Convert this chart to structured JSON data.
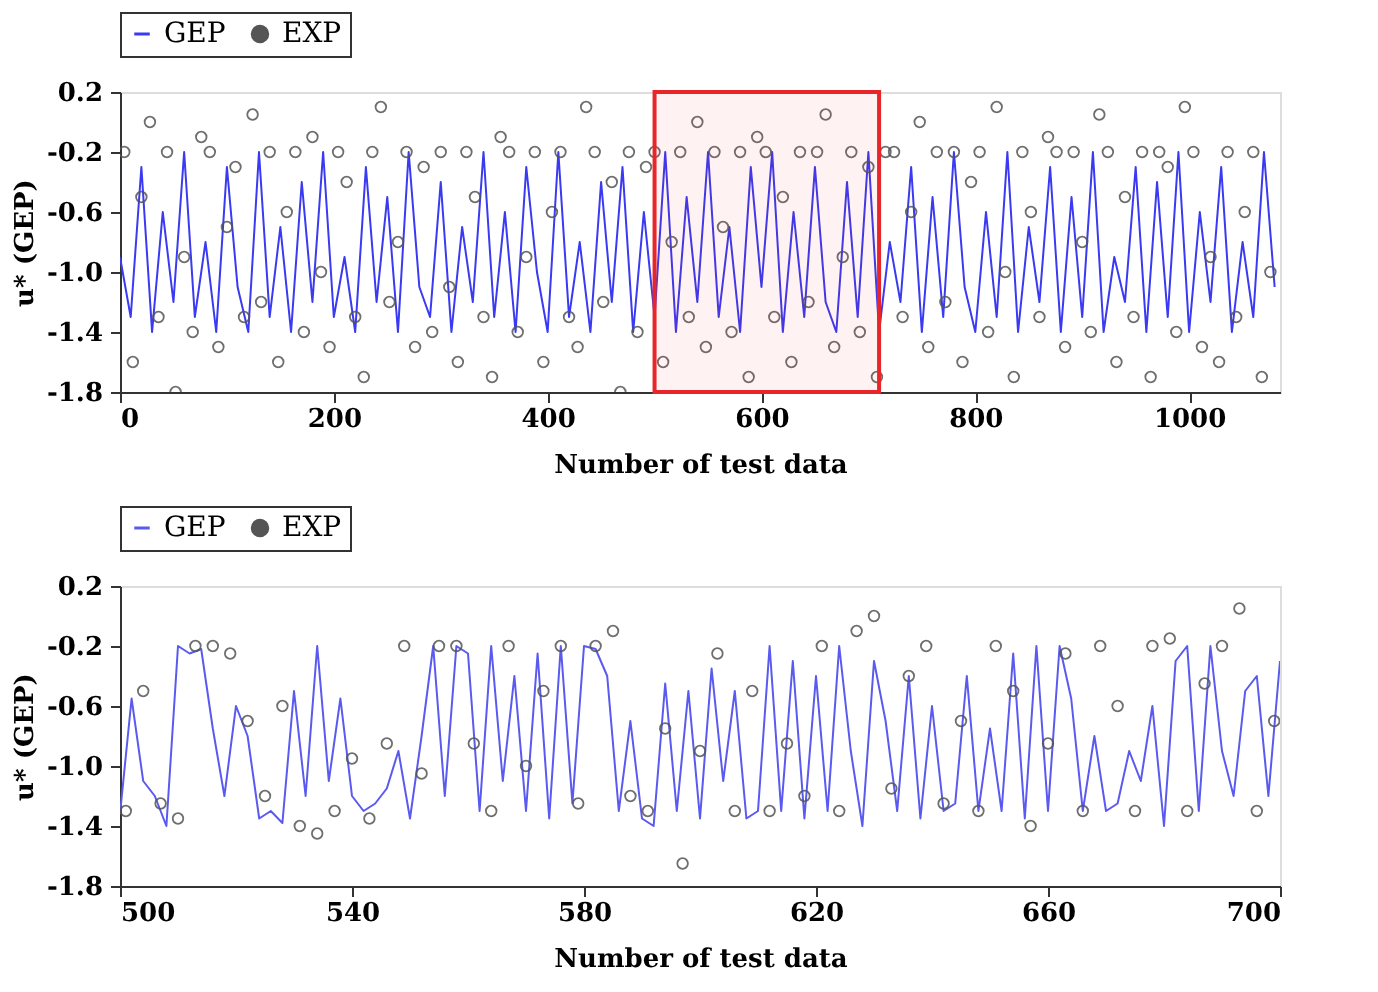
{
  "chart_data": [
    {
      "type": "line",
      "xlabel": "Number of test data",
      "ylabel": "u* (GEP)",
      "xlim": [
        0,
        1085
      ],
      "xticks": [
        0,
        200,
        400,
        600,
        800,
        1000
      ],
      "ylim": [
        -1.8,
        0.2
      ],
      "yticks": [
        0.2,
        -0.2,
        -0.6,
        {
          "value": -1.0,
          "label": "-1.0"
        },
        -1.4,
        -1.8
      ],
      "grid": false,
      "legend": "top left",
      "bands": [
        {
          "axis": "x",
          "from": 500,
          "to": 710,
          "color": "#e8262a"
        }
      ],
      "series": [
        {
          "name": "GEP",
          "type": "line",
          "color": "#3a3af2",
          "marker": "none",
          "x": [
            0,
            10,
            20,
            30,
            40,
            50,
            60,
            70,
            80,
            90,
            100,
            110,
            120,
            130,
            140,
            150,
            160,
            170,
            180,
            190,
            200,
            210,
            220,
            230,
            240,
            250,
            260,
            270,
            280,
            290,
            300,
            310,
            320,
            330,
            340,
            350,
            360,
            370,
            380,
            390,
            400,
            410,
            420,
            430,
            440,
            450,
            460,
            470,
            480,
            490,
            500,
            510,
            520,
            530,
            540,
            550,
            560,
            570,
            580,
            590,
            600,
            610,
            620,
            630,
            640,
            650,
            660,
            670,
            680,
            690,
            700,
            710,
            720,
            730,
            740,
            750,
            760,
            770,
            780,
            790,
            800,
            810,
            820,
            830,
            840,
            850,
            860,
            870,
            880,
            890,
            900,
            910,
            920,
            930,
            940,
            950,
            960,
            970,
            980,
            990,
            1000,
            1010,
            1020,
            1030,
            1040,
            1050,
            1060,
            1070,
            1080
          ],
          "values": [
            -0.9,
            -1.3,
            -0.3,
            -1.4,
            -0.6,
            -1.2,
            -0.2,
            -1.3,
            -0.8,
            -1.4,
            -0.3,
            -1.1,
            -1.4,
            -0.2,
            -1.3,
            -0.7,
            -1.4,
            -0.4,
            -1.2,
            -0.2,
            -1.3,
            -0.9,
            -1.4,
            -0.3,
            -1.2,
            -0.5,
            -1.4,
            -0.2,
            -1.1,
            -1.3,
            -0.4,
            -1.4,
            -0.7,
            -1.2,
            -0.2,
            -1.3,
            -0.6,
            -1.4,
            -0.3,
            -1.0,
            -1.4,
            -0.2,
            -1.3,
            -0.8,
            -1.4,
            -0.4,
            -1.2,
            -0.3,
            -1.4,
            -0.6,
            -1.3,
            -0.2,
            -1.4,
            -0.5,
            -1.2,
            -0.2,
            -1.3,
            -0.7,
            -1.4,
            -0.3,
            -1.1,
            -0.2,
            -1.4,
            -0.6,
            -1.3,
            -0.3,
            -1.2,
            -1.4,
            -0.4,
            -1.3,
            -0.2,
            -1.4,
            -0.8,
            -1.2,
            -0.3,
            -1.4,
            -0.5,
            -1.3,
            -0.2,
            -1.1,
            -1.4,
            -0.6,
            -1.3,
            -0.2,
            -1.4,
            -0.7,
            -1.2,
            -0.3,
            -1.4,
            -0.5,
            -1.3,
            -0.2,
            -1.4,
            -0.9,
            -1.2,
            -0.3,
            -1.4,
            -0.4,
            -1.3,
            -0.2,
            -1.4,
            -0.6,
            -1.2,
            -0.3,
            -1.4,
            -0.8,
            -1.3,
            -0.2,
            -1.1
          ]
        },
        {
          "name": "EXP",
          "type": "scatter",
          "color": "#555555",
          "marker": "circle",
          "x": [
            4,
            12,
            20,
            28,
            36,
            44,
            52,
            60,
            68,
            76,
            84,
            92,
            100,
            108,
            116,
            124,
            132,
            140,
            148,
            156,
            164,
            172,
            180,
            188,
            196,
            204,
            212,
            220,
            228,
            236,
            244,
            252,
            260,
            268,
            276,
            284,
            292,
            300,
            308,
            316,
            324,
            332,
            340,
            348,
            356,
            364,
            372,
            380,
            388,
            396,
            404,
            412,
            420,
            428,
            436,
            444,
            452,
            460,
            468,
            476,
            484,
            492,
            500,
            508,
            516,
            524,
            532,
            540,
            548,
            556,
            564,
            572,
            580,
            588,
            596,
            604,
            612,
            620,
            628,
            636,
            644,
            652,
            660,
            668,
            676,
            684,
            692,
            700,
            708,
            716,
            724,
            732,
            740,
            748,
            756,
            764,
            772,
            780,
            788,
            796,
            804,
            812,
            820,
            828,
            836,
            844,
            852,
            860,
            868,
            876,
            884,
            892,
            900,
            908,
            916,
            924,
            932,
            940,
            948,
            956,
            964,
            972,
            980,
            988,
            996,
            1004,
            1012,
            1020,
            1028,
            1036,
            1044,
            1052,
            1060,
            1068,
            1076
          ],
          "values": [
            -0.2,
            -1.6,
            -0.5,
            0.0,
            -1.3,
            -0.2,
            -1.8,
            -0.9,
            -1.4,
            -0.1,
            -0.2,
            -1.5,
            -0.7,
            -0.3,
            -1.3,
            0.05,
            -1.2,
            -0.2,
            -1.6,
            -0.6,
            -0.2,
            -1.4,
            -0.1,
            -1.0,
            -1.5,
            -0.2,
            -0.4,
            -1.3,
            -1.7,
            -0.2,
            0.1,
            -1.2,
            -0.8,
            -0.2,
            -1.5,
            -0.3,
            -1.4,
            -0.2,
            -1.1,
            -1.6,
            -0.2,
            -0.5,
            -1.3,
            -1.7,
            -0.1,
            -0.2,
            -1.4,
            -0.9,
            -0.2,
            -1.6,
            -0.6,
            -0.2,
            -1.3,
            -1.5,
            0.1,
            -0.2,
            -1.2,
            -0.4,
            -1.8,
            -0.2,
            -1.4,
            -0.3,
            -0.2,
            -1.6,
            -0.8,
            -0.2,
            -1.3,
            0.0,
            -1.5,
            -0.2,
            -0.7,
            -1.4,
            -0.2,
            -1.7,
            -0.1,
            -0.2,
            -1.3,
            -0.5,
            -1.6,
            -0.2,
            -1.2,
            -0.2,
            0.05,
            -1.5,
            -0.9,
            -0.2,
            -1.4,
            -0.3,
            -1.7,
            -0.2,
            -0.2,
            -1.3,
            -0.6,
            0.0,
            -1.5,
            -0.2,
            -1.2,
            -0.2,
            -1.6,
            -0.4,
            -0.2,
            -1.4,
            0.1,
            -1.0,
            -1.7,
            -0.2,
            -0.6,
            -1.3,
            -0.1,
            -0.2,
            -1.5,
            -0.2,
            -0.8,
            -1.4,
            0.05,
            -0.2,
            -1.6,
            -0.5,
            -1.3,
            -0.2,
            -1.7,
            -0.2,
            -0.3,
            -1.4,
            0.1,
            -0.2,
            -1.5,
            -0.9,
            -1.6,
            -0.2,
            -1.3,
            -0.6,
            -0.2,
            -1.7,
            -1.0
          ]
        }
      ]
    },
    {
      "type": "line",
      "xlabel": "Number of test data",
      "ylabel": "u* (GEP)",
      "xlim": [
        500,
        700
      ],
      "xticks": [
        500,
        540,
        580,
        620,
        660,
        700
      ],
      "ylim": [
        -1.8,
        0.2
      ],
      "yticks": [
        0.2,
        -0.2,
        -0.6,
        {
          "value": -1.0,
          "label": "-1.0"
        },
        -1.4,
        -1.8
      ],
      "grid": false,
      "legend": "top left",
      "series": [
        {
          "name": "GEP",
          "type": "line",
          "color": "#5a5af0",
          "marker": "none",
          "x": [
            500,
            502,
            504,
            506,
            508,
            510,
            512,
            514,
            516,
            518,
            520,
            522,
            524,
            526,
            528,
            530,
            532,
            534,
            536,
            538,
            540,
            542,
            544,
            546,
            548,
            550,
            552,
            554,
            556,
            558,
            560,
            562,
            564,
            566,
            568,
            570,
            572,
            574,
            576,
            578,
            580,
            582,
            584,
            586,
            588,
            590,
            592,
            594,
            596,
            598,
            600,
            602,
            604,
            606,
            608,
            610,
            612,
            614,
            616,
            618,
            620,
            622,
            624,
            626,
            628,
            630,
            632,
            634,
            636,
            638,
            640,
            642,
            644,
            646,
            648,
            650,
            652,
            654,
            656,
            658,
            660,
            662,
            664,
            666,
            668,
            670,
            672,
            674,
            676,
            678,
            680,
            682,
            684,
            686,
            688,
            690,
            692,
            694,
            696,
            698,
            700
          ],
          "values": [
            -1.32,
            -0.55,
            -1.1,
            -1.2,
            -1.4,
            -0.2,
            -0.25,
            -0.22,
            -0.75,
            -1.2,
            -0.6,
            -0.8,
            -1.35,
            -1.3,
            -1.38,
            -0.5,
            -1.2,
            -0.2,
            -1.1,
            -0.55,
            -1.2,
            -1.3,
            -1.25,
            -1.15,
            -0.9,
            -1.35,
            -0.8,
            -0.2,
            -1.2,
            -0.2,
            -0.25,
            -1.3,
            -0.2,
            -1.1,
            -0.4,
            -1.3,
            -0.25,
            -1.35,
            -0.2,
            -1.25,
            -0.2,
            -0.22,
            -0.4,
            -1.3,
            -0.7,
            -1.35,
            -1.4,
            -0.45,
            -1.3,
            -0.5,
            -1.35,
            -0.35,
            -1.1,
            -0.5,
            -1.35,
            -1.3,
            -0.2,
            -1.3,
            -0.3,
            -1.35,
            -0.4,
            -1.3,
            -0.2,
            -0.9,
            -1.4,
            -0.3,
            -0.7,
            -1.3,
            -0.4,
            -1.35,
            -0.6,
            -1.3,
            -1.25,
            -0.4,
            -1.3,
            -0.75,
            -1.3,
            -0.25,
            -1.35,
            -0.2,
            -1.3,
            -0.2,
            -0.55,
            -1.3,
            -0.8,
            -1.3,
            -1.25,
            -0.9,
            -1.1,
            -0.6,
            -1.4,
            -0.3,
            -0.2,
            -1.3,
            -0.2,
            -0.9,
            -1.2,
            -0.5,
            -0.4,
            -1.2,
            -0.3
          ]
        },
        {
          "name": "EXP",
          "type": "scatter",
          "color": "#555555",
          "marker": "circle",
          "x": [
            501,
            504,
            507,
            510,
            513,
            516,
            519,
            522,
            525,
            528,
            531,
            534,
            537,
            540,
            543,
            546,
            549,
            552,
            555,
            558,
            561,
            564,
            567,
            570,
            573,
            576,
            579,
            582,
            585,
            588,
            591,
            594,
            597,
            600,
            603,
            606,
            609,
            612,
            615,
            618,
            621,
            624,
            627,
            630,
            633,
            636,
            639,
            642,
            645,
            648,
            651,
            654,
            657,
            660,
            663,
            666,
            669,
            672,
            675,
            678,
            681,
            684,
            687,
            690,
            693,
            696,
            699
          ],
          "values": [
            -1.3,
            -0.5,
            -1.25,
            -1.35,
            -0.2,
            -0.2,
            -0.25,
            -0.7,
            -1.2,
            -0.6,
            -1.4,
            -1.45,
            -1.3,
            -0.95,
            -1.35,
            -0.85,
            -0.2,
            -1.05,
            -0.2,
            -0.2,
            -0.85,
            -1.3,
            -0.2,
            -1.0,
            -0.5,
            -0.2,
            -1.25,
            -0.2,
            -0.1,
            -1.2,
            -1.3,
            -0.75,
            -1.65,
            -0.9,
            -0.25,
            -1.3,
            -0.5,
            -1.3,
            -0.85,
            -1.2,
            -0.2,
            -1.3,
            -0.1,
            0.0,
            -1.15,
            -0.4,
            -0.2,
            -1.25,
            -0.7,
            -1.3,
            -0.2,
            -0.5,
            -1.4,
            -0.85,
            -0.25,
            -1.3,
            -0.2,
            -0.6,
            -1.3,
            -0.2,
            -0.15,
            -1.3,
            -0.45,
            -0.2,
            0.05,
            -1.3,
            -0.7
          ]
        }
      ]
    }
  ]
}
